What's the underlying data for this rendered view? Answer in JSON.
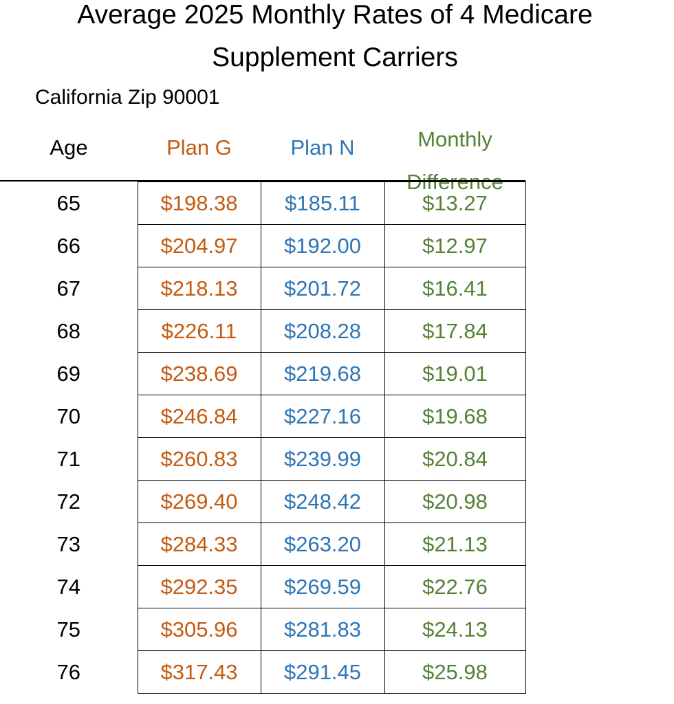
{
  "title_line1": "Average 2025 Monthly Rates of 4 Medicare",
  "title_line2": "Supplement Carriers",
  "subtitle": "California  Zip 90001",
  "headers": {
    "age": "Age",
    "plan_g": "Plan G",
    "plan_n": "Plan N",
    "diff_line1": "Monthly",
    "diff_line2": "Difference"
  },
  "colors": {
    "plan_g": "#C55A11",
    "plan_n": "#2E75B6",
    "difference": "#548235",
    "text": "#000000"
  },
  "rows": [
    {
      "age": "65",
      "plan_g": "$198.38",
      "plan_n": "$185.11",
      "diff": "$13.27"
    },
    {
      "age": "66",
      "plan_g": "$204.97",
      "plan_n": "$192.00",
      "diff": "$12.97"
    },
    {
      "age": "67",
      "plan_g": "$218.13",
      "plan_n": "$201.72",
      "diff": "$16.41"
    },
    {
      "age": "68",
      "plan_g": "$226.11",
      "plan_n": "$208.28",
      "diff": "$17.84"
    },
    {
      "age": "69",
      "plan_g": "$238.69",
      "plan_n": "$219.68",
      "diff": "$19.01"
    },
    {
      "age": "70",
      "plan_g": "$246.84",
      "plan_n": "$227.16",
      "diff": "$19.68"
    },
    {
      "age": "71",
      "plan_g": "$260.83",
      "plan_n": "$239.99",
      "diff": "$20.84"
    },
    {
      "age": "72",
      "plan_g": "$269.40",
      "plan_n": "$248.42",
      "diff": "$20.98"
    },
    {
      "age": "73",
      "plan_g": "$284.33",
      "plan_n": "$263.20",
      "diff": "$21.13"
    },
    {
      "age": "74",
      "plan_g": "$292.35",
      "plan_n": "$269.59",
      "diff": "$22.76"
    },
    {
      "age": "75",
      "plan_g": "$305.96",
      "plan_n": "$281.83",
      "diff": "$24.13"
    },
    {
      "age": "76",
      "plan_g": "$317.43",
      "plan_n": "$291.45",
      "diff": "$25.98"
    }
  ]
}
